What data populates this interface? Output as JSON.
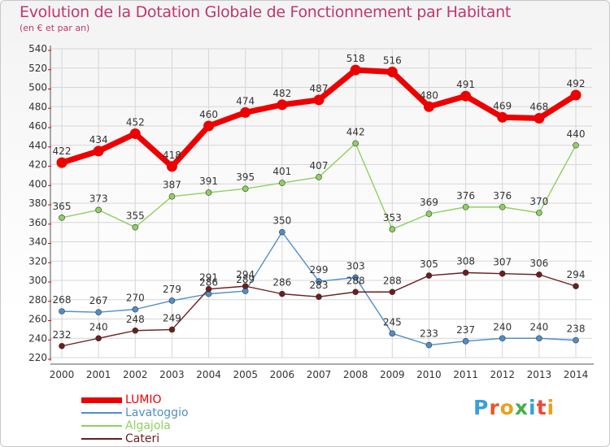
{
  "title": "Evolution de la Dotation Globale de Fonctionnement par Habitant",
  "subtitle": "(en € et par an)",
  "brand": {
    "text": "Proxiti",
    "colors": [
      "#3a9fdc",
      "#e8572a",
      "#e8a21f",
      "#43b14b",
      "#3a9fdc",
      "#e84a3a",
      "#e8a21f"
    ]
  },
  "chart_data": {
    "type": "line",
    "title": "Evolution de la Dotation Globale de Fonctionnement par Habitant",
    "subtitle": "(en € et par an)",
    "xlabel": "",
    "ylabel": "",
    "categories": [
      "2000",
      "2001",
      "2002",
      "2003",
      "2004",
      "2005",
      "2006",
      "2007",
      "2008",
      "2009",
      "2010",
      "2011",
      "2012",
      "2013",
      "2014"
    ],
    "ylim": [
      220,
      540
    ],
    "yticks": [
      220,
      240,
      260,
      280,
      300,
      320,
      340,
      360,
      380,
      400,
      420,
      440,
      460,
      480,
      500,
      520,
      540
    ],
    "grid": true,
    "legend_position": "bottom-left",
    "series": [
      {
        "name": "LUMIO",
        "color": "#ee0000",
        "values": [
          422,
          434,
          452,
          418,
          460,
          474,
          482,
          487,
          518,
          516,
          480,
          491,
          469,
          468,
          492
        ]
      },
      {
        "name": "Lavatoggio",
        "color": "#4f8fc8",
        "values": [
          268,
          267,
          270,
          279,
          286,
          289,
          350,
          299,
          303,
          245,
          233,
          237,
          240,
          240,
          238
        ]
      },
      {
        "name": "Algajola",
        "color": "#8fd160",
        "values": [
          365,
          373,
          355,
          387,
          391,
          395,
          401,
          407,
          442,
          353,
          369,
          376,
          376,
          370,
          440
        ]
      },
      {
        "name": "Cateri",
        "color": "#6b1e1e",
        "values": [
          232,
          240,
          248,
          249,
          291,
          294,
          286,
          283,
          288,
          288,
          305,
          308,
          307,
          306,
          294
        ]
      }
    ],
    "data_labels": {
      "LUMIO": [
        "422",
        "434",
        "452",
        "418",
        "460",
        "474",
        "482",
        "487",
        "518",
        "516",
        "480",
        "491",
        "469",
        "468",
        "492"
      ],
      "Lavatoggio": [
        "268",
        "267",
        "270",
        "279",
        "286",
        "289",
        "350",
        "299",
        "303",
        "245",
        "233",
        "237",
        "240",
        "240",
        "238"
      ],
      "Algajola": [
        "365",
        "373",
        "355",
        "387",
        "391",
        "395",
        "401",
        "407",
        "442",
        "353",
        "369",
        "376",
        "376",
        "370",
        "440"
      ],
      "Cateri": [
        "232",
        "240",
        "248",
        "249",
        "291",
        "294",
        "286",
        "283",
        "288",
        "288",
        "305",
        "308",
        "307",
        "306",
        "294"
      ]
    }
  }
}
